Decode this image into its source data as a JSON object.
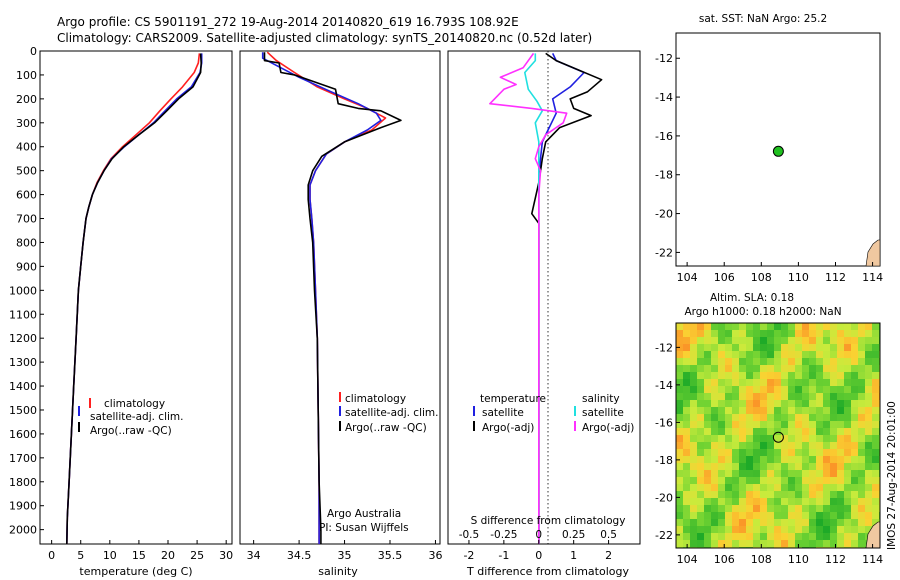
{
  "header": {
    "line1": "Argo profile: CS 5901191_272 19-Aug-2014 20140820_619 16.793S 108.92E",
    "line2": "Climatology: CARS2009. Satellite-adjusted climatology: synTS_20140820.nc (0.52d later)"
  },
  "colors": {
    "clim": "#ff2020",
    "sat": "#2020e0",
    "argo": "#000000",
    "cyan": "#20e0e0",
    "magenta": "#ff30ff",
    "green": "#20c020"
  },
  "chart_data": [
    {
      "type": "line",
      "name": "temperature",
      "xlabel": "temperature (deg C)",
      "xlim": [
        -2,
        31
      ],
      "ylim": [
        0,
        2060
      ],
      "xticks": [
        "0",
        "5",
        "10",
        "15",
        "20",
        "25",
        "30"
      ],
      "xtick_values": [
        0,
        5,
        10,
        15,
        20,
        25,
        30
      ],
      "yticks": [
        "0",
        "100",
        "200",
        "300",
        "400",
        "500",
        "600",
        "700",
        "800",
        "900",
        "1000",
        "1100",
        "1200",
        "1300",
        "1400",
        "1500",
        "1600",
        "1700",
        "1800",
        "1900",
        "2000"
      ],
      "ytick_values": [
        0,
        100,
        200,
        300,
        400,
        500,
        600,
        700,
        800,
        900,
        1000,
        1100,
        1200,
        1300,
        1400,
        1500,
        1600,
        1700,
        1800,
        1900,
        2000
      ],
      "legend": [
        "climatology",
        "satellite-adj. clim.",
        "Argo(..raw -QC)"
      ],
      "series": [
        {
          "name": "climatology",
          "color": "clim",
          "points": [
            [
              25.4,
              10
            ],
            [
              25.2,
              50
            ],
            [
              24.5,
              90
            ],
            [
              22.5,
              150
            ],
            [
              20.5,
              200
            ],
            [
              18.6,
              250
            ],
            [
              16.8,
              300
            ],
            [
              14.5,
              350
            ],
            [
              12.2,
              400
            ],
            [
              10.2,
              450
            ],
            [
              8.9,
              500
            ],
            [
              7.8,
              550
            ],
            [
              7.0,
              600
            ],
            [
              6.4,
              650
            ],
            [
              5.9,
              700
            ],
            [
              5.4,
              800
            ],
            [
              5.0,
              900
            ],
            [
              4.6,
              1000
            ],
            [
              4.2,
              1200
            ],
            [
              3.8,
              1400
            ],
            [
              3.4,
              1600
            ],
            [
              3.0,
              1800
            ],
            [
              2.7,
              1950
            ],
            [
              2.6,
              2060
            ]
          ]
        },
        {
          "name": "satellite",
          "color": "sat",
          "points": [
            [
              25.8,
              10
            ],
            [
              25.8,
              50
            ],
            [
              25.5,
              90
            ],
            [
              24.0,
              150
            ],
            [
              21.5,
              200
            ],
            [
              19.5,
              250
            ],
            [
              17.5,
              300
            ],
            [
              15.0,
              350
            ],
            [
              12.5,
              400
            ],
            [
              10.3,
              450
            ],
            [
              9.0,
              500
            ],
            [
              7.9,
              550
            ],
            [
              7.0,
              600
            ],
            [
              6.4,
              650
            ],
            [
              5.9,
              700
            ],
            [
              5.4,
              800
            ],
            [
              5.0,
              900
            ],
            [
              4.6,
              1000
            ],
            [
              4.2,
              1200
            ],
            [
              3.8,
              1400
            ],
            [
              3.4,
              1600
            ],
            [
              3.0,
              1800
            ],
            [
              2.7,
              1950
            ],
            [
              2.6,
              2060
            ]
          ]
        },
        {
          "name": "argo",
          "color": "argo",
          "points": [
            [
              25.6,
              10
            ],
            [
              25.7,
              50
            ],
            [
              25.6,
              90
            ],
            [
              24.3,
              150
            ],
            [
              21.8,
              200
            ],
            [
              19.8,
              250
            ],
            [
              17.7,
              300
            ],
            [
              15.0,
              350
            ],
            [
              12.4,
              400
            ],
            [
              10.4,
              450
            ],
            [
              9.0,
              500
            ],
            [
              7.9,
              550
            ],
            [
              7.0,
              600
            ],
            [
              6.4,
              650
            ],
            [
              5.9,
              700
            ],
            [
              5.4,
              800
            ],
            [
              5.0,
              900
            ],
            [
              4.6,
              1000
            ],
            [
              4.2,
              1200
            ],
            [
              3.8,
              1400
            ],
            [
              3.4,
              1600
            ],
            [
              3.0,
              1800
            ],
            [
              2.7,
              1950
            ],
            [
              2.6,
              2060
            ]
          ]
        }
      ]
    },
    {
      "type": "line",
      "name": "salinity",
      "xlabel": "salinity",
      "xlim": [
        33.85,
        36.05
      ],
      "ylim": [
        0,
        2060
      ],
      "xticks": [
        "34",
        "34.5",
        "35",
        "35.5",
        "36"
      ],
      "xtick_values": [
        34,
        34.5,
        35,
        35.5,
        36
      ],
      "legend": [
        "climatology",
        "satellite-adj. clim.",
        "Argo(..raw -QC)"
      ],
      "annotation": [
        "Argo Australia",
        "PI: Susan Wijffels"
      ],
      "series": [
        {
          "name": "climatology",
          "color": "clim",
          "points": [
            [
              34.15,
              5
            ],
            [
              34.25,
              40
            ],
            [
              34.45,
              90
            ],
            [
              34.7,
              150
            ],
            [
              35.0,
              200
            ],
            [
              35.25,
              240
            ],
            [
              35.45,
              280
            ],
            [
              35.3,
              330
            ],
            [
              35.0,
              380
            ],
            [
              34.8,
              430
            ],
            [
              34.68,
              500
            ],
            [
              34.62,
              560
            ],
            [
              34.62,
              620
            ],
            [
              34.64,
              700
            ],
            [
              34.66,
              800
            ],
            [
              34.68,
              1000
            ],
            [
              34.7,
              1200
            ],
            [
              34.71,
              1500
            ],
            [
              34.72,
              1800
            ],
            [
              34.72,
              2060
            ]
          ]
        },
        {
          "name": "satellite",
          "color": "sat",
          "points": [
            [
              34.1,
              5
            ],
            [
              34.1,
              30
            ],
            [
              34.25,
              60
            ],
            [
              34.5,
              110
            ],
            [
              34.85,
              170
            ],
            [
              35.15,
              220
            ],
            [
              35.35,
              260
            ],
            [
              35.4,
              290
            ],
            [
              35.25,
              330
            ],
            [
              35.0,
              380
            ],
            [
              34.8,
              430
            ],
            [
              34.68,
              500
            ],
            [
              34.62,
              560
            ],
            [
              34.62,
              620
            ],
            [
              34.64,
              700
            ],
            [
              34.66,
              800
            ],
            [
              34.68,
              1000
            ],
            [
              34.7,
              1200
            ],
            [
              34.71,
              1500
            ],
            [
              34.72,
              1800
            ],
            [
              34.72,
              2060
            ]
          ]
        },
        {
          "name": "argo",
          "color": "argo",
          "points": [
            [
              34.12,
              5
            ],
            [
              34.12,
              40
            ],
            [
              34.28,
              50
            ],
            [
              34.3,
              90
            ],
            [
              34.45,
              100
            ],
            [
              34.9,
              160
            ],
            [
              34.93,
              220
            ],
            [
              35.15,
              240
            ],
            [
              35.4,
              250
            ],
            [
              35.62,
              290
            ],
            [
              35.4,
              320
            ],
            [
              35.0,
              380
            ],
            [
              34.75,
              440
            ],
            [
              34.65,
              500
            ],
            [
              34.6,
              560
            ],
            [
              34.6,
              620
            ],
            [
              34.62,
              700
            ],
            [
              34.65,
              800
            ],
            [
              34.67,
              1000
            ],
            [
              34.7,
              1200
            ],
            [
              34.71,
              1500
            ],
            [
              34.72,
              1800
            ],
            [
              34.74,
              2000
            ],
            [
              34.74,
              2060
            ]
          ]
        }
      ]
    },
    {
      "type": "line",
      "name": "differences",
      "xlabel": "T difference from climatology",
      "xlabel_top": "S difference from climatology",
      "xlim": [
        -2.6,
        2.9
      ],
      "ylim": [
        0,
        2060
      ],
      "xticks": [
        "-2",
        "-1",
        "0",
        "1",
        "2"
      ],
      "xtick_values": [
        -2,
        -1,
        0,
        1,
        2
      ],
      "sticks": [
        "-0.5",
        "-0.25",
        "0",
        "0.25",
        "0.5"
      ],
      "stick_values": [
        -0.5,
        -0.25,
        0,
        0.25,
        0.5
      ],
      "legend_headers": [
        "temperature",
        "salinity"
      ],
      "legend": [
        "satellite",
        "Argo(-adj)",
        "satellite",
        "Argo(-adj)"
      ],
      "series": [
        {
          "name": "T satellite",
          "color": "sat",
          "points": [
            [
              0.4,
              10
            ],
            [
              0.5,
              40
            ],
            [
              1.3,
              90
            ],
            [
              0.9,
              150
            ],
            [
              0.4,
              200
            ],
            [
              0.5,
              260
            ],
            [
              0.3,
              320
            ],
            [
              0.1,
              380
            ],
            [
              0.05,
              450
            ],
            [
              0.0,
              550
            ],
            [
              0.0,
              800
            ],
            [
              0.0,
              1500
            ],
            [
              0.0,
              2060
            ]
          ]
        },
        {
          "name": "T argo",
          "color": "argo",
          "points": [
            [
              0.2,
              10
            ],
            [
              0.5,
              40
            ],
            [
              1.8,
              120
            ],
            [
              1.4,
              170
            ],
            [
              0.9,
              200
            ],
            [
              1.0,
              240
            ],
            [
              1.5,
              270
            ],
            [
              0.6,
              320
            ],
            [
              0.2,
              380
            ],
            [
              0.1,
              450
            ],
            [
              0.0,
              550
            ],
            [
              -0.2,
              680
            ],
            [
              0.0,
              720
            ],
            [
              0.0,
              1500
            ],
            [
              0.0,
              2060
            ]
          ]
        },
        {
          "name": "S satellite",
          "color": "cyan",
          "points": [
            [
              -0.1,
              10
            ],
            [
              -0.1,
              40
            ],
            [
              -0.4,
              90
            ],
            [
              -0.3,
              160
            ],
            [
              -0.05,
              210
            ],
            [
              0.1,
              250
            ],
            [
              -0.1,
              300
            ],
            [
              0.0,
              380
            ],
            [
              0.0,
              500
            ],
            [
              0.0,
              1500
            ],
            [
              0.0,
              2060
            ]
          ]
        },
        {
          "name": "S argo",
          "color": "magenta",
          "points": [
            [
              -0.15,
              10
            ],
            [
              -0.45,
              70
            ],
            [
              -1.1,
              110
            ],
            [
              -0.65,
              140
            ],
            [
              -1.0,
              160
            ],
            [
              -1.4,
              220
            ],
            [
              -0.2,
              240
            ],
            [
              0.8,
              260
            ],
            [
              0.7,
              300
            ],
            [
              0.2,
              350
            ],
            [
              0.0,
              400
            ],
            [
              -0.1,
              450
            ],
            [
              0.05,
              500
            ],
            [
              0.0,
              600
            ],
            [
              0.0,
              1500
            ],
            [
              0.0,
              2060
            ]
          ]
        }
      ]
    },
    {
      "type": "scatter",
      "name": "sst-map",
      "title": "sat. SST: NaN Argo: 25.2",
      "xlim": [
        103.4,
        114.4
      ],
      "ylim": [
        -22.7,
        -10.7
      ],
      "xticks": [
        "104",
        "106",
        "108",
        "110",
        "112",
        "114"
      ],
      "xtick_values": [
        104,
        106,
        108,
        110,
        112,
        114
      ],
      "yticks": [
        "-12",
        "-14",
        "-16",
        "-18",
        "-20",
        "-22"
      ],
      "ytick_values": [
        -12,
        -14,
        -16,
        -18,
        -20,
        -22
      ],
      "points": [
        [
          108.92,
          -16.793
        ]
      ]
    },
    {
      "type": "heatmap",
      "name": "sla-map",
      "title1": "Altim. SLA: 0.18",
      "title2": "Argo h1000: 0.18 h2000: NaN",
      "xlim": [
        103.4,
        114.4
      ],
      "ylim": [
        -22.7,
        -10.7
      ],
      "xticks": [
        "104",
        "106",
        "108",
        "110",
        "112",
        "114"
      ],
      "xtick_values": [
        104,
        106,
        108,
        110,
        112,
        114
      ],
      "yticks": [
        "-12",
        "-14",
        "-16",
        "-18",
        "-20",
        "-22"
      ],
      "ytick_values": [
        -12,
        -14,
        -16,
        -18,
        -20,
        -22
      ],
      "points": [
        [
          108.92,
          -16.793
        ]
      ],
      "side_label": "IMOS 27-Aug-2014 20:01:00"
    }
  ]
}
